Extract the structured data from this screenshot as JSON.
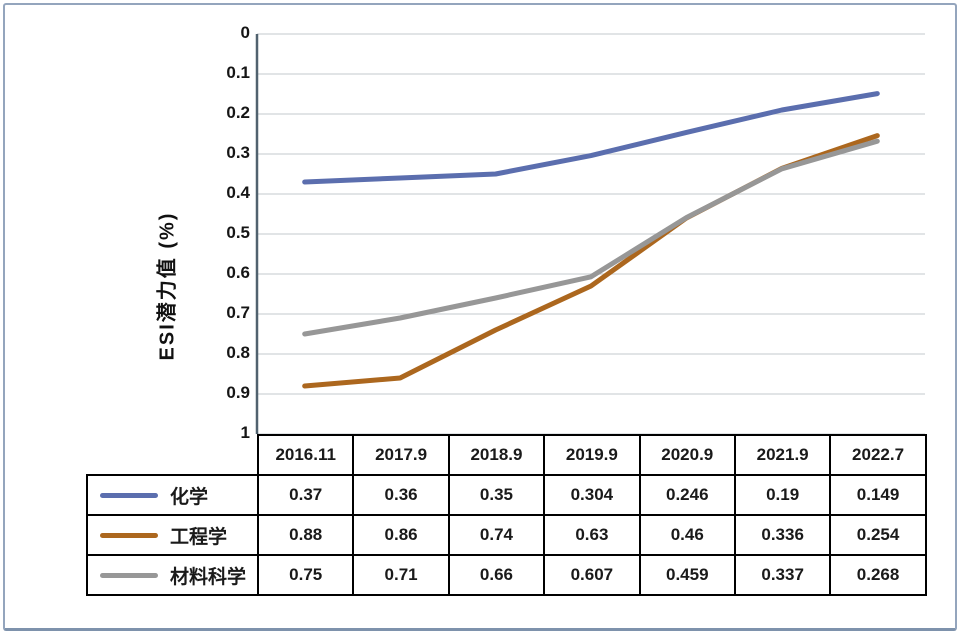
{
  "page": {
    "background": "#ffffff",
    "border_color": "#94A5BD"
  },
  "chart_data": {
    "type": "line",
    "title": "",
    "xlabel": "",
    "ylabel": "ESI潜力值 (%)",
    "categories": [
      "2016.11",
      "2017.9",
      "2018.9",
      "2019.9",
      "2020.9",
      "2021.9",
      "2022.7"
    ],
    "series": [
      {
        "name": "化学",
        "color": "#5B6EAE",
        "values": [
          0.37,
          0.36,
          0.35,
          0.304,
          0.246,
          0.19,
          0.149
        ]
      },
      {
        "name": "工程学",
        "color": "#AC671E",
        "values": [
          0.88,
          0.86,
          0.74,
          0.63,
          0.46,
          0.336,
          0.254
        ]
      },
      {
        "name": "材料科学",
        "color": "#979797",
        "values": [
          0.75,
          0.71,
          0.66,
          0.607,
          0.459,
          0.337,
          0.268
        ]
      }
    ],
    "y_axis": {
      "min": 0,
      "max": 1,
      "step": 0.1,
      "inverted": true,
      "tick_labels": [
        "0",
        "0.1",
        "0.2",
        "0.3",
        "0.4",
        "0.5",
        "0.6",
        "0.7",
        "0.8",
        "0.9",
        "1"
      ]
    },
    "grid": true,
    "legend_position": "table-rows-left",
    "colors": {
      "grid": "#CFD3D6",
      "axis": "#51626F",
      "table_border": "#000000",
      "text": "#1A1A1A"
    }
  }
}
